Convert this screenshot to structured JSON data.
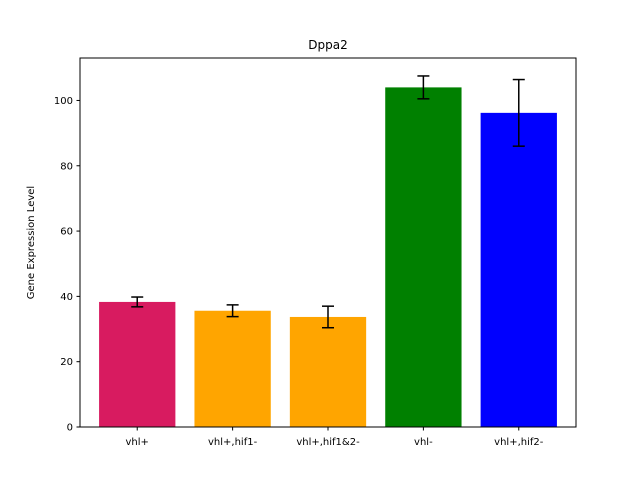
{
  "chart_data": {
    "type": "bar",
    "title": "Dppa2",
    "xlabel": "",
    "ylabel": "Gene Expression Level",
    "categories": [
      "vhl+",
      "vhl+,hif1-",
      "vhl+,hif1&2-",
      "vhl-",
      "vhl+,hif2-"
    ],
    "values": [
      38.3,
      35.6,
      33.7,
      104.0,
      96.2
    ],
    "errors": [
      1.5,
      1.8,
      3.3,
      3.5,
      10.2
    ],
    "colors": [
      "#d81b60",
      "#ffa500",
      "#ffa500",
      "#008000",
      "#0000ff"
    ],
    "ylim": [
      0,
      113
    ],
    "yticks": [
      0,
      20,
      40,
      60,
      80,
      100
    ],
    "grid": false,
    "legend": "none"
  }
}
